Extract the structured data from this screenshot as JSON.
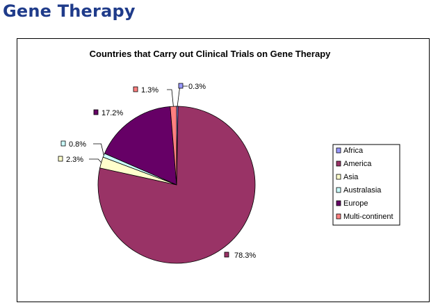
{
  "page": {
    "title": "Gene Therapy"
  },
  "chart_data": {
    "type": "pie",
    "title": "Countries that Carry out Clinical Trials on Gene Therapy",
    "slices": [
      {
        "name": "Africa",
        "value": 0.3,
        "label": "0.3%",
        "color": "#9999ff"
      },
      {
        "name": "America",
        "value": 78.3,
        "label": "78.3%",
        "color": "#993366"
      },
      {
        "name": "Asia",
        "value": 2.3,
        "label": "2.3%",
        "color": "#ffffcc"
      },
      {
        "name": "Australasia",
        "value": 0.8,
        "label": "0.8%",
        "color": "#ccffff"
      },
      {
        "name": "Europe",
        "value": 17.2,
        "label": "17.2%",
        "color": "#660066"
      },
      {
        "name": "Multi-continent",
        "value": 1.3,
        "label": "1.3%",
        "color": "#ff8080"
      }
    ],
    "legend_position": "right"
  }
}
